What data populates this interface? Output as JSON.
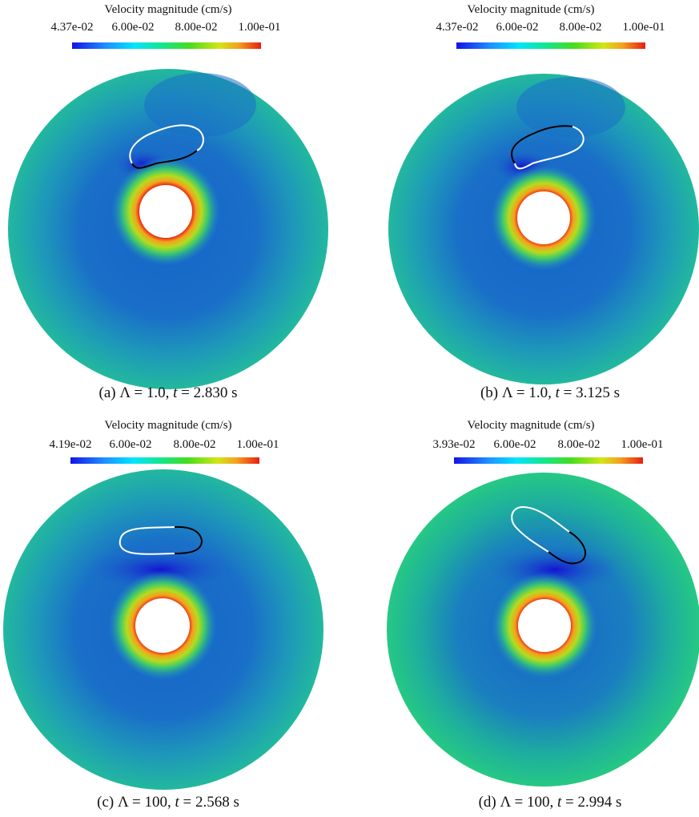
{
  "panels": [
    {
      "colorbar": {
        "title": "Velocity magnitude (cm/s)",
        "ticks": [
          "4.37e-02",
          "6.00e-02",
          "8.00e-02",
          "1.00e-01"
        ]
      },
      "caption": {
        "label": "(a)",
        "lambda_part": "Λ = 1.0,",
        "t_var": "t",
        "t_value": "= 2.830 s"
      }
    },
    {
      "colorbar": {
        "title": "Velocity magnitude (cm/s)",
        "ticks": [
          "4.37e-02",
          "6.00e-02",
          "8.00e-02",
          "1.00e-01"
        ]
      },
      "caption": {
        "label": "(b)",
        "lambda_part": "Λ = 1.0,",
        "t_var": "t",
        "t_value": "= 3.125 s"
      }
    },
    {
      "colorbar": {
        "title": "Velocity magnitude (cm/s)",
        "ticks": [
          "4.19e-02",
          "6.00e-02",
          "8.00e-02",
          "1.00e-01"
        ]
      },
      "caption": {
        "label": "(c)",
        "lambda_part": "Λ = 100,",
        "t_var": "t",
        "t_value": "= 2.568 s"
      }
    },
    {
      "colorbar": {
        "title": "Velocity magnitude (cm/s)",
        "ticks": [
          "3.93e-02",
          "6.00e-02",
          "8.00e-02",
          "1.00e-01"
        ]
      },
      "caption": {
        "label": "(d)",
        "lambda_part": "Λ = 100,",
        "t_var": "t",
        "t_value": "= 2.994 s"
      }
    }
  ],
  "colors": {
    "colormap": [
      "#1414e6",
      "#1e90ff",
      "#00e5ff",
      "#14e68c",
      "#46dc1e",
      "#d2e614",
      "#f5a01e",
      "#e61e14"
    ],
    "outer_field": "#1fb89a",
    "dark_band": "#1a6fc8",
    "outline_light": "#ffffff",
    "outline_dark": "#000000"
  }
}
